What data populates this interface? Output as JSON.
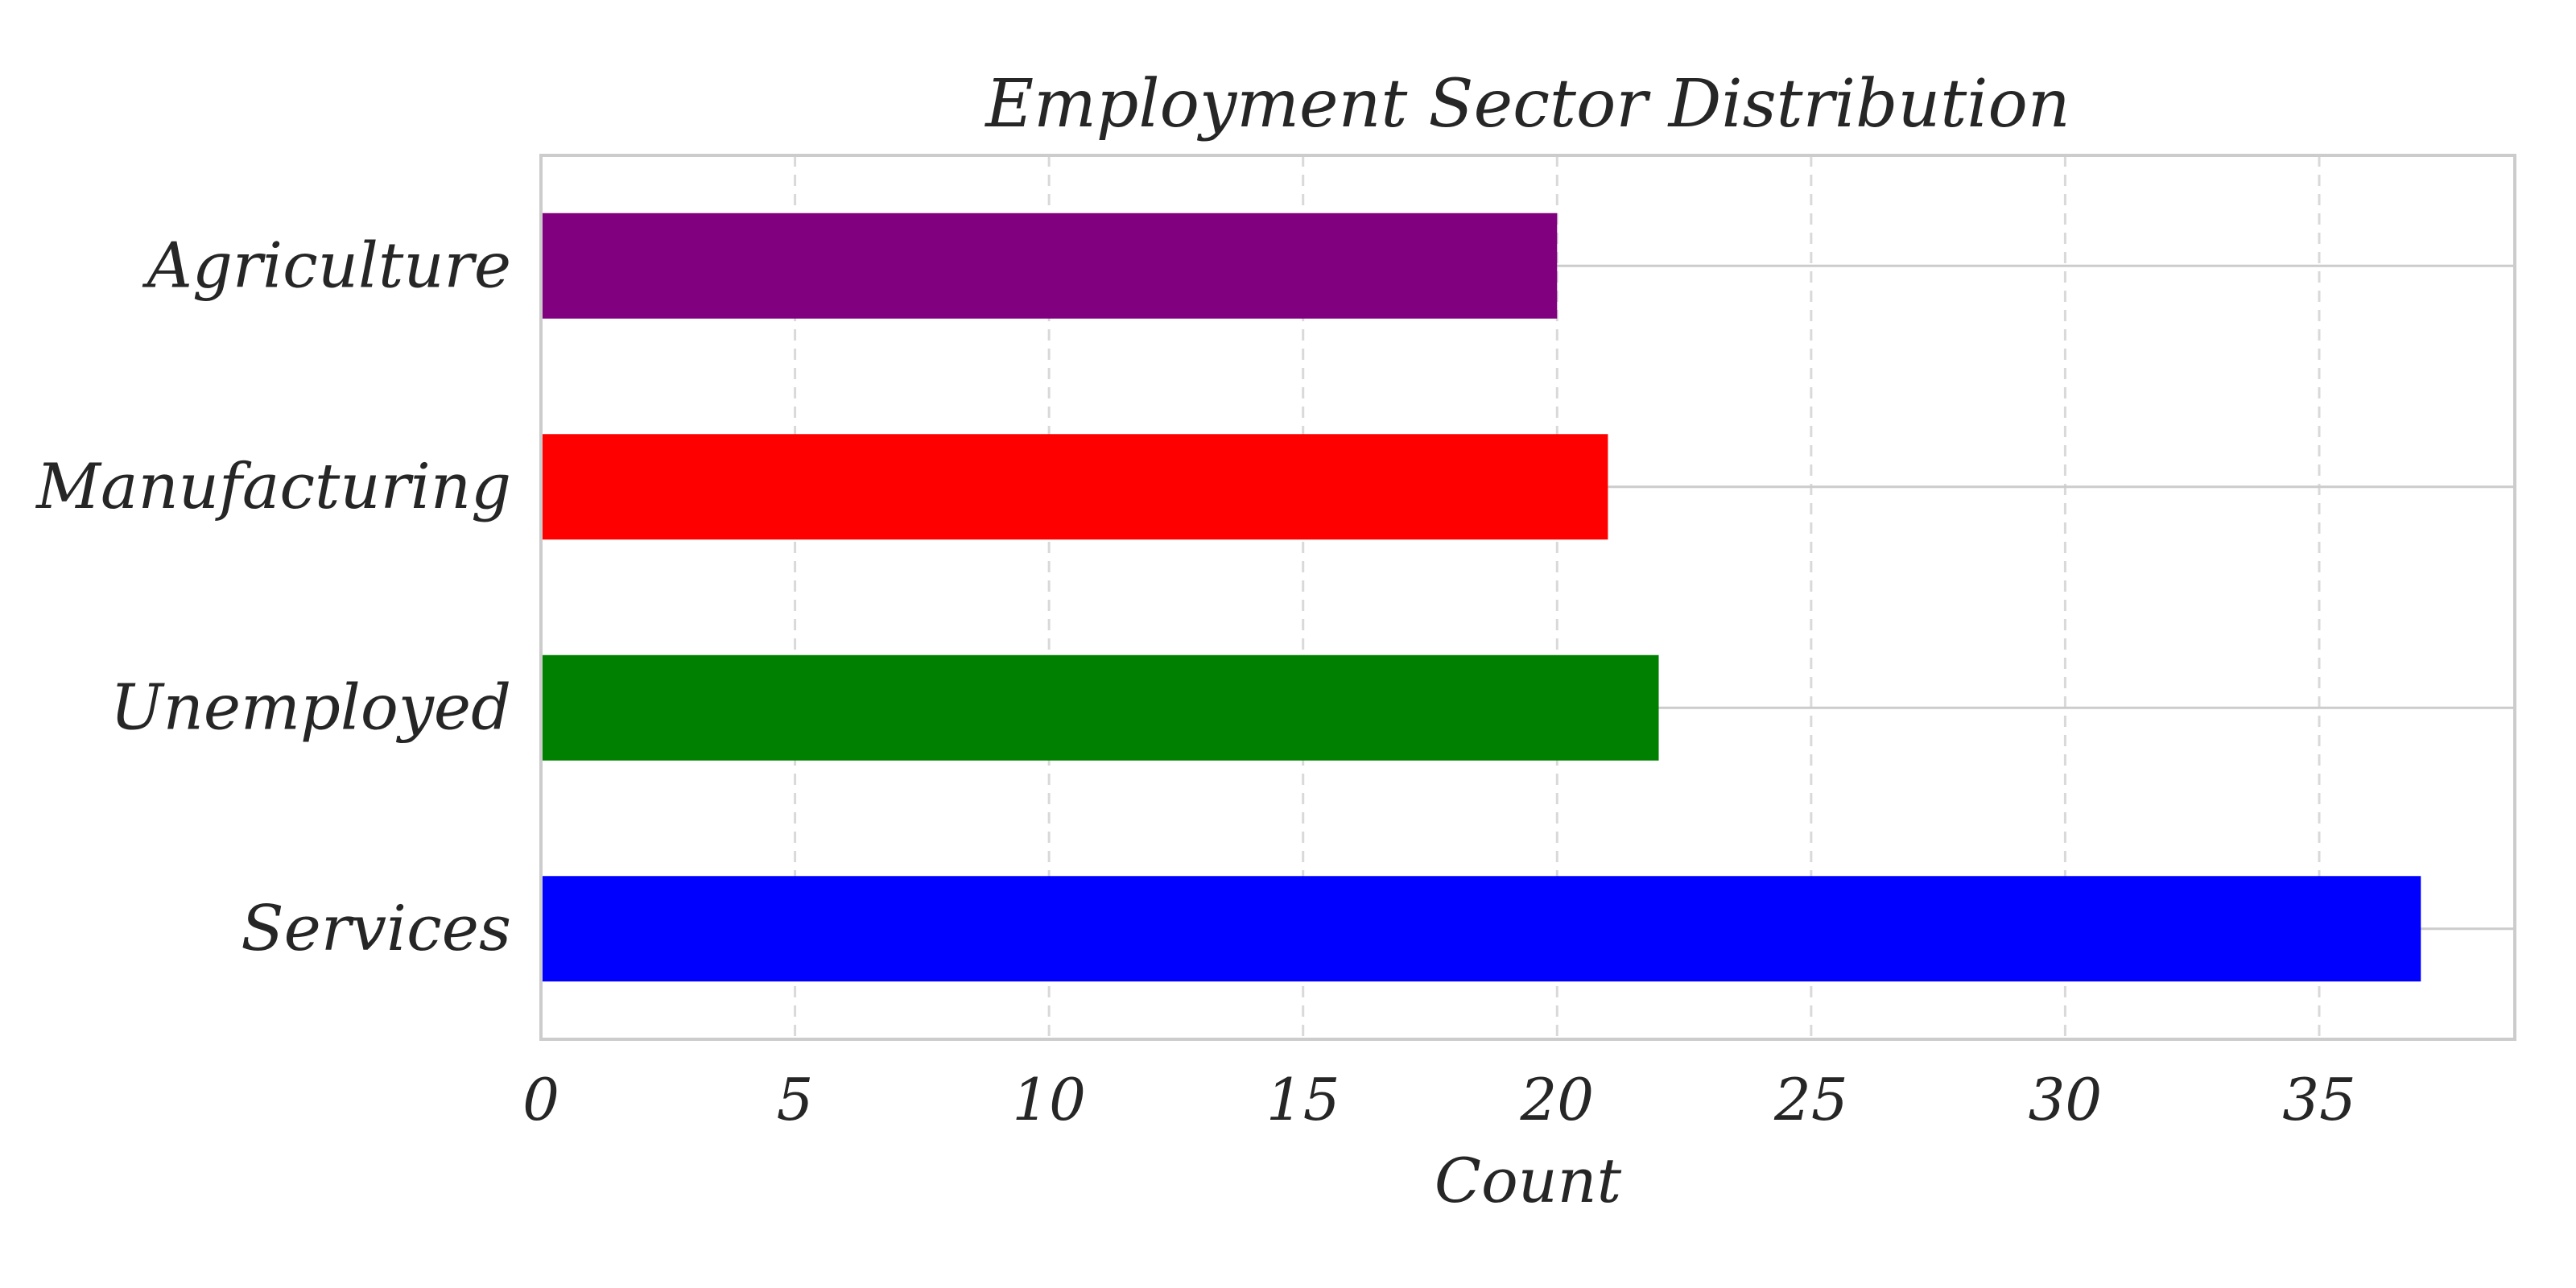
{
  "chart_data": {
    "type": "bar",
    "orientation": "horizontal",
    "title": "Employment Sector Distribution",
    "xlabel": "Count",
    "ylabel": "",
    "categories": [
      "Services",
      "Unemployed",
      "Manufacturing",
      "Agriculture"
    ],
    "values": [
      37,
      22,
      21,
      20
    ],
    "colors": [
      "#0000ff",
      "#008000",
      "#ff0000",
      "#800080"
    ],
    "xlim": [
      0,
      38.85
    ],
    "xticks": [
      0,
      5,
      10,
      15,
      20,
      25,
      30,
      35
    ],
    "grid": true,
    "legend": "none"
  },
  "style": {
    "background": "#ffffff",
    "text_color": "#262626",
    "frame_color": "#cccccc",
    "grid_color": "#d9d9d9",
    "category_guide_color": "#cccccc"
  }
}
